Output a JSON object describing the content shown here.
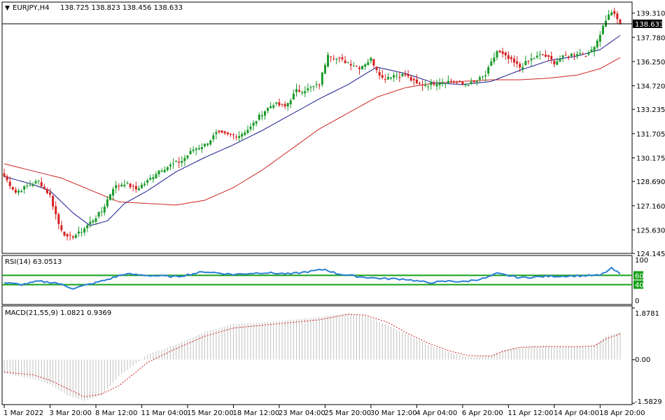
{
  "chart_data": [
    {
      "panel": "price",
      "type": "candlestick",
      "header": {
        "symbol_tf": "EURJPY,H4",
        "ohlc": "138.725 138.823 138.456 138.633"
      },
      "ylim": [
        124.15,
        140.0
      ],
      "y_ticks": [
        "139.310",
        "137.780",
        "136.250",
        "134.720",
        "133.235",
        "131.705",
        "130.175",
        "128.690",
        "127.160",
        "125.630",
        "124.145"
      ],
      "y_tick_values": [
        139.31,
        137.78,
        136.25,
        134.72,
        133.235,
        131.705,
        130.175,
        128.69,
        127.16,
        125.63,
        124.145
      ],
      "current_price_label": "138.633",
      "current_price": 138.633,
      "x_ticks": [
        "1 Mar 2022",
        "3 Mar 20:00",
        "8 Mar 12:00",
        "11 Mar 04:00",
        "15 Mar 20:00",
        "18 Mar 12:00",
        "23 Mar 04:00",
        "25 Mar 20:00",
        "30 Mar 12:00",
        "4 Apr 04:00",
        "6 Apr 20:00",
        "11 Apr 12:00",
        "14 Apr 04:00",
        "18 Apr 20:00"
      ],
      "x_tick_bars": [
        0,
        16,
        32,
        48,
        64,
        80,
        96,
        112,
        128,
        144,
        160,
        176,
        192,
        208
      ],
      "total_bars": 216,
      "close_anchors": [
        [
          0,
          129.0
        ],
        [
          4,
          128.0
        ],
        [
          8,
          128.4
        ],
        [
          12,
          128.7
        ],
        [
          16,
          127.8
        ],
        [
          19,
          126.0
        ],
        [
          22,
          125.1
        ],
        [
          26,
          125.4
        ],
        [
          30,
          126.1
        ],
        [
          34,
          126.8
        ],
        [
          38,
          128.3
        ],
        [
          42,
          128.6
        ],
        [
          46,
          128.2
        ],
        [
          50,
          128.7
        ],
        [
          54,
          129.4
        ],
        [
          58,
          129.7
        ],
        [
          62,
          130.0
        ],
        [
          66,
          130.7
        ],
        [
          70,
          131.0
        ],
        [
          74,
          131.7
        ],
        [
          78,
          131.6
        ],
        [
          82,
          131.6
        ],
        [
          86,
          132.1
        ],
        [
          90,
          133.0
        ],
        [
          94,
          133.6
        ],
        [
          98,
          133.4
        ],
        [
          102,
          134.4
        ],
        [
          106,
          134.5
        ],
        [
          110,
          134.8
        ],
        [
          113,
          136.8
        ],
        [
          116,
          136.4
        ],
        [
          120,
          136.2
        ],
        [
          124,
          135.9
        ],
        [
          128,
          136.4
        ],
        [
          132,
          135.2
        ],
        [
          136,
          135.4
        ],
        [
          140,
          135.4
        ],
        [
          144,
          134.8
        ],
        [
          148,
          134.8
        ],
        [
          152,
          135.0
        ],
        [
          156,
          135.0
        ],
        [
          160,
          134.8
        ],
        [
          164,
          134.9
        ],
        [
          168,
          135.4
        ],
        [
          172,
          136.9
        ],
        [
          176,
          136.4
        ],
        [
          180,
          135.9
        ],
        [
          184,
          136.4
        ],
        [
          188,
          136.7
        ],
        [
          192,
          136.2
        ],
        [
          196,
          136.6
        ],
        [
          200,
          136.8
        ],
        [
          204,
          136.7
        ],
        [
          207,
          137.6
        ],
        [
          210,
          138.9
        ],
        [
          212,
          139.4
        ],
        [
          214,
          138.9
        ],
        [
          215,
          138.633
        ]
      ],
      "series": [
        {
          "name": "",
          "kind": "ma_fast",
          "color": "#1a1a8c",
          "anchors": [
            [
              0,
              129.0
            ],
            [
              10,
              128.5
            ],
            [
              16,
              128.1
            ],
            [
              24,
              126.7
            ],
            [
              30,
              125.9
            ],
            [
              36,
              126.2
            ],
            [
              42,
              127.3
            ],
            [
              50,
              128.1
            ],
            [
              60,
              129.3
            ],
            [
              70,
              130.2
            ],
            [
              80,
              131.0
            ],
            [
              90,
              131.9
            ],
            [
              100,
              132.9
            ],
            [
              110,
              133.9
            ],
            [
              120,
              134.8
            ],
            [
              130,
              135.9
            ],
            [
              140,
              135.5
            ],
            [
              150,
              134.9
            ],
            [
              160,
              134.8
            ],
            [
              170,
              135.0
            ],
            [
              180,
              135.7
            ],
            [
              190,
              136.3
            ],
            [
              200,
              136.6
            ],
            [
              208,
              137.0
            ],
            [
              215,
              137.9
            ]
          ]
        },
        {
          "name": "",
          "kind": "ma_slow",
          "color": "#cc2222",
          "anchors": [
            [
              0,
              129.8
            ],
            [
              20,
              128.9
            ],
            [
              40,
              127.4
            ],
            [
              60,
              127.2
            ],
            [
              70,
              127.5
            ],
            [
              80,
              128.3
            ],
            [
              90,
              129.4
            ],
            [
              100,
              130.7
            ],
            [
              110,
              132.0
            ],
            [
              120,
              133.0
            ],
            [
              130,
              134.0
            ],
            [
              140,
              134.6
            ],
            [
              150,
              134.9
            ],
            [
              160,
              135.0
            ],
            [
              170,
              135.1
            ],
            [
              180,
              135.1
            ],
            [
              190,
              135.2
            ],
            [
              200,
              135.4
            ],
            [
              208,
              135.8
            ],
            [
              215,
              136.5
            ]
          ]
        }
      ]
    },
    {
      "panel": "rsi",
      "type": "line",
      "header": "RSI(14) 63.0513",
      "ylim": [
        0,
        100
      ],
      "y_ticks": [
        "100",
        "60",
        "40",
        "0"
      ],
      "y_tick_values": [
        100,
        60,
        40,
        0
      ],
      "level_labels": [
        "60",
        "40"
      ],
      "levels": [
        60,
        40
      ],
      "line_color": "#2b7fd6",
      "level_color": "#16a016",
      "anchors": [
        [
          0,
          44
        ],
        [
          6,
          40
        ],
        [
          12,
          47
        ],
        [
          18,
          44
        ],
        [
          24,
          32
        ],
        [
          30,
          41
        ],
        [
          36,
          51
        ],
        [
          42,
          63
        ],
        [
          50,
          60
        ],
        [
          60,
          57
        ],
        [
          70,
          68
        ],
        [
          80,
          62
        ],
        [
          90,
          66
        ],
        [
          100,
          63
        ],
        [
          112,
          73
        ],
        [
          116,
          64
        ],
        [
          124,
          57
        ],
        [
          132,
          53
        ],
        [
          140,
          52
        ],
        [
          148,
          44
        ],
        [
          156,
          48
        ],
        [
          160,
          46
        ],
        [
          168,
          54
        ],
        [
          172,
          64
        ],
        [
          180,
          55
        ],
        [
          190,
          58
        ],
        [
          200,
          59
        ],
        [
          208,
          60
        ],
        [
          212,
          75
        ],
        [
          215,
          63
        ]
      ]
    },
    {
      "panel": "macd",
      "type": "histogram",
      "header": "MACD(21,55,9) 1.0821 0.9369",
      "ylim": [
        -1.5829,
        1.8781
      ],
      "y_ticks": [
        "1.8781",
        "0.00",
        "-1.5829"
      ],
      "y_tick_values": [
        1.8781,
        0.0,
        -1.5829
      ],
      "hist_color": "#c0c0c0",
      "signal_color": "#cc2222",
      "hist_anchors": [
        [
          0,
          -0.5
        ],
        [
          10,
          -0.7
        ],
        [
          16,
          -0.9
        ],
        [
          22,
          -1.3
        ],
        [
          28,
          -1.5
        ],
        [
          34,
          -1.3
        ],
        [
          40,
          -0.6
        ],
        [
          46,
          -0.15
        ],
        [
          50,
          0.2
        ],
        [
          60,
          0.55
        ],
        [
          70,
          1.0
        ],
        [
          80,
          1.3
        ],
        [
          90,
          1.35
        ],
        [
          100,
          1.45
        ],
        [
          110,
          1.55
        ],
        [
          120,
          1.68
        ],
        [
          126,
          1.6
        ],
        [
          134,
          1.25
        ],
        [
          140,
          0.95
        ],
        [
          148,
          0.55
        ],
        [
          156,
          0.25
        ],
        [
          162,
          0.1
        ],
        [
          170,
          0.15
        ],
        [
          174,
          0.35
        ],
        [
          180,
          0.45
        ],
        [
          190,
          0.5
        ],
        [
          200,
          0.48
        ],
        [
          206,
          0.52
        ],
        [
          210,
          0.85
        ],
        [
          215,
          1.0
        ]
      ],
      "signal_anchors": [
        [
          0,
          -0.45
        ],
        [
          10,
          -0.55
        ],
        [
          16,
          -0.75
        ],
        [
          22,
          -1.05
        ],
        [
          28,
          -1.35
        ],
        [
          34,
          -1.25
        ],
        [
          40,
          -0.95
        ],
        [
          46,
          -0.45
        ],
        [
          50,
          -0.1
        ],
        [
          60,
          0.4
        ],
        [
          70,
          0.85
        ],
        [
          80,
          1.15
        ],
        [
          90,
          1.25
        ],
        [
          100,
          1.35
        ],
        [
          110,
          1.45
        ],
        [
          120,
          1.65
        ],
        [
          126,
          1.62
        ],
        [
          134,
          1.35
        ],
        [
          140,
          1.0
        ],
        [
          148,
          0.6
        ],
        [
          156,
          0.3
        ],
        [
          162,
          0.15
        ],
        [
          170,
          0.13
        ],
        [
          174,
          0.3
        ],
        [
          180,
          0.45
        ],
        [
          190,
          0.48
        ],
        [
          200,
          0.47
        ],
        [
          206,
          0.5
        ],
        [
          210,
          0.75
        ],
        [
          215,
          0.94
        ]
      ]
    }
  ]
}
